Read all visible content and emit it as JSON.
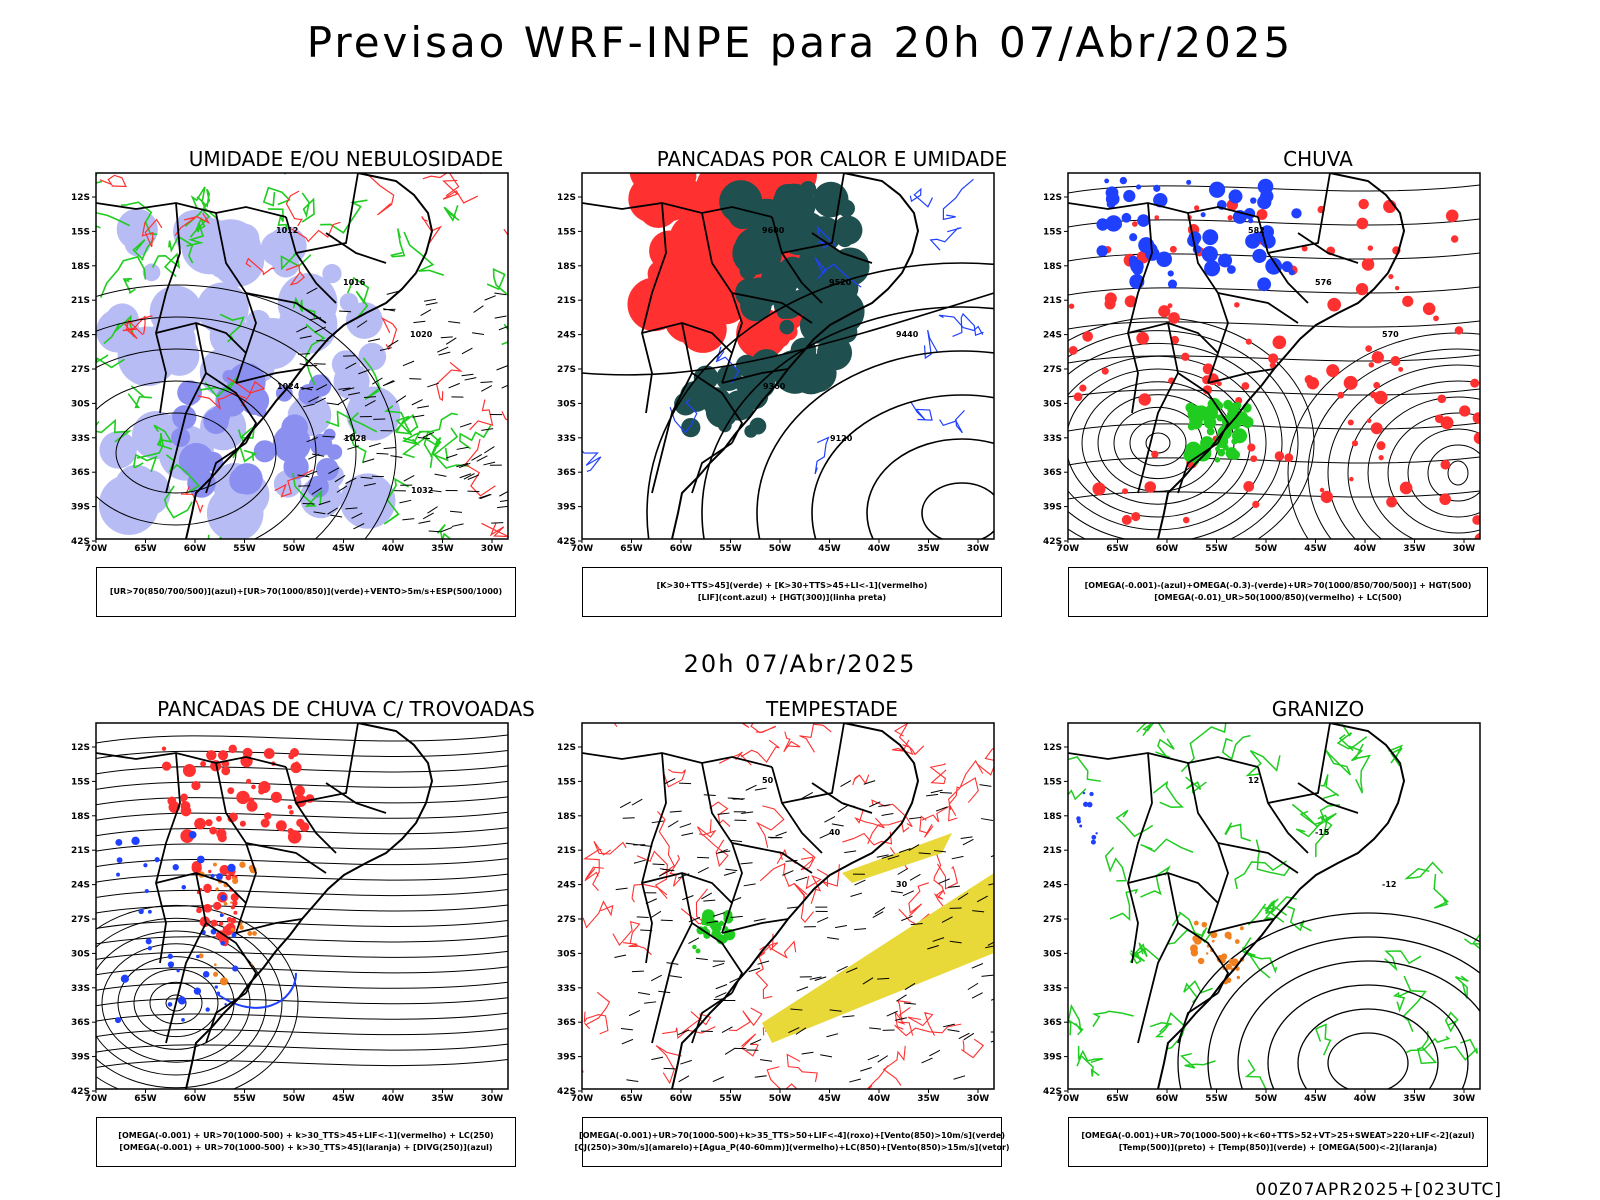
{
  "main_title": "Previsao WRF-INPE  para 20h 07/Abr/2025",
  "mid_title": "20h 07/Abr/2025",
  "footer": "00Z07APR2025+[023UTC]",
  "lat_labels": [
    "12S",
    "15S",
    "18S",
    "21S",
    "24S",
    "27S",
    "30S",
    "33S",
    "36S",
    "39S",
    "42S"
  ],
  "lon_labels": [
    "70W",
    "65W",
    "60W",
    "55W",
    "50W",
    "45W",
    "40W",
    "35W",
    "30W"
  ],
  "panels": [
    {
      "title": "UMIDADE E/OU NEBULOSIDADE",
      "legend": [
        "[UR>70(850/700/500)](azul)+[UR>70(1000/850)](verde)+VENTO>5m/s+ESP(500/1000)"
      ],
      "contour_labels": [
        "1012",
        "1016",
        "1020",
        "1024",
        "1028",
        "1032"
      ]
    },
    {
      "title": "PANCADAS POR CALOR E UMIDADE",
      "legend": [
        "[K>30+TTS>45](verde) + [K>30+TTS>45+LI<-1](vermelho)",
        "[LIF](cont.azul) + [HGT(300)](linha preta)"
      ],
      "contour_labels": [
        "9600",
        "9520",
        "9440",
        "9360",
        "9120"
      ]
    },
    {
      "title": "CHUVA",
      "legend": [
        "[OMEGA(-0.001)-(azul)+OMEGA(-0.3)-(verde)+UR>70(1000/850/700/500)] + HGT(500)",
        "[OMEGA(-0.01)_UR>50(1000/850)(vermelho) + LC(500)"
      ],
      "contour_labels": [
        "582",
        "576",
        "570"
      ]
    },
    {
      "title": "PANCADAS DE CHUVA C/ TROVOADAS",
      "legend": [
        "[OMEGA(-0.001) + UR>70(1000-500) + k>30_TTS>45+LIF<-1](vermelho) + LC(250)",
        "[OMEGA(-0.001) + UR>70(1000-500) + k>30_TTS>45](laranja) + [DIVG(250)](azul)"
      ],
      "contour_labels": []
    },
    {
      "title": "TEMPESTADE",
      "legend": [
        "[OMEGA(-0.001)+UR>70(1000-500)+k>35_TTS>50+LIF<-4](roxo)+[Vento(850)>10m/s](verde)",
        "[CJ(250)>30m/s](amarelo)+[Agua_P(40-60mm)](vermelho)+LC(850)+[Vento(850)>15m/s](vetor)"
      ],
      "contour_labels": [
        "50",
        "40",
        "30"
      ]
    },
    {
      "title": "GRANIZO",
      "legend": [
        "[OMEGA(-0.001)+UR>70(1000-500)+k<60+TTS>52+VT>25+SWEAT>220+LIF<-2](azul)",
        "[Temp(500)](preto) + [Temp(850)](verde) + [OMEGA(500)<-2](laranja)"
      ],
      "contour_labels": [
        "12",
        "-15",
        "-12"
      ]
    }
  ],
  "colors": {
    "blue": "#2040ff",
    "green": "#20cc20",
    "red": "#ff3030",
    "darkgreen": "#1f4f4f",
    "lightblue": "#b8bcf4",
    "yellow": "#e8d838",
    "orange": "#f08020"
  }
}
